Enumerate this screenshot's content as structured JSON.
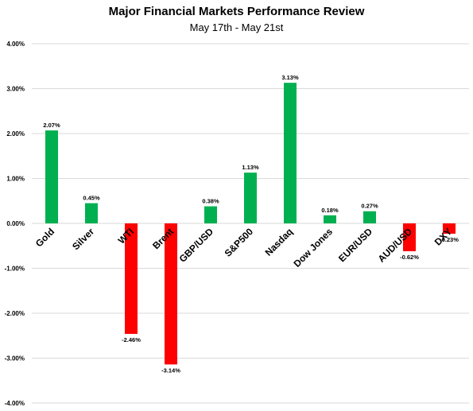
{
  "chart_data": {
    "type": "bar",
    "title": "Major Financial Markets Performance Review",
    "subtitle": "May 17th - May 21st",
    "categories": [
      "Gold",
      "Silver",
      "WTI",
      "Brent",
      "GBP/USD",
      "S&P500",
      "Nasdaq",
      "Dow Jones",
      "EUR/USD",
      "AUD/USD",
      "DXY"
    ],
    "values": [
      2.07,
      0.45,
      -2.46,
      -3.14,
      0.38,
      1.13,
      3.13,
      0.18,
      0.27,
      -0.62,
      -0.23
    ],
    "data_labels": [
      "2.07%",
      "0.45%",
      "-2.46%",
      "-3.14%",
      "0.38%",
      "1.13%",
      "3.13%",
      "0.18%",
      "0.27%",
      "-0.62%",
      "-0.23%"
    ],
    "y_ticks": [
      4,
      3,
      2,
      1,
      0,
      -1,
      -2,
      -3,
      -4
    ],
    "y_tick_labels": [
      "4.00%",
      "3.00%",
      "2.00%",
      "1.00%",
      "0.00%",
      "-1.00%",
      "-2.00%",
      "-3.00%",
      "-4.00%"
    ],
    "ylim": [
      -4,
      4
    ],
    "xlabel": "",
    "ylabel": "",
    "grid": true,
    "legend": "none",
    "colors": {
      "positive": "#00b050",
      "negative": "#ff0000",
      "grid": "#d9d9d9"
    }
  }
}
